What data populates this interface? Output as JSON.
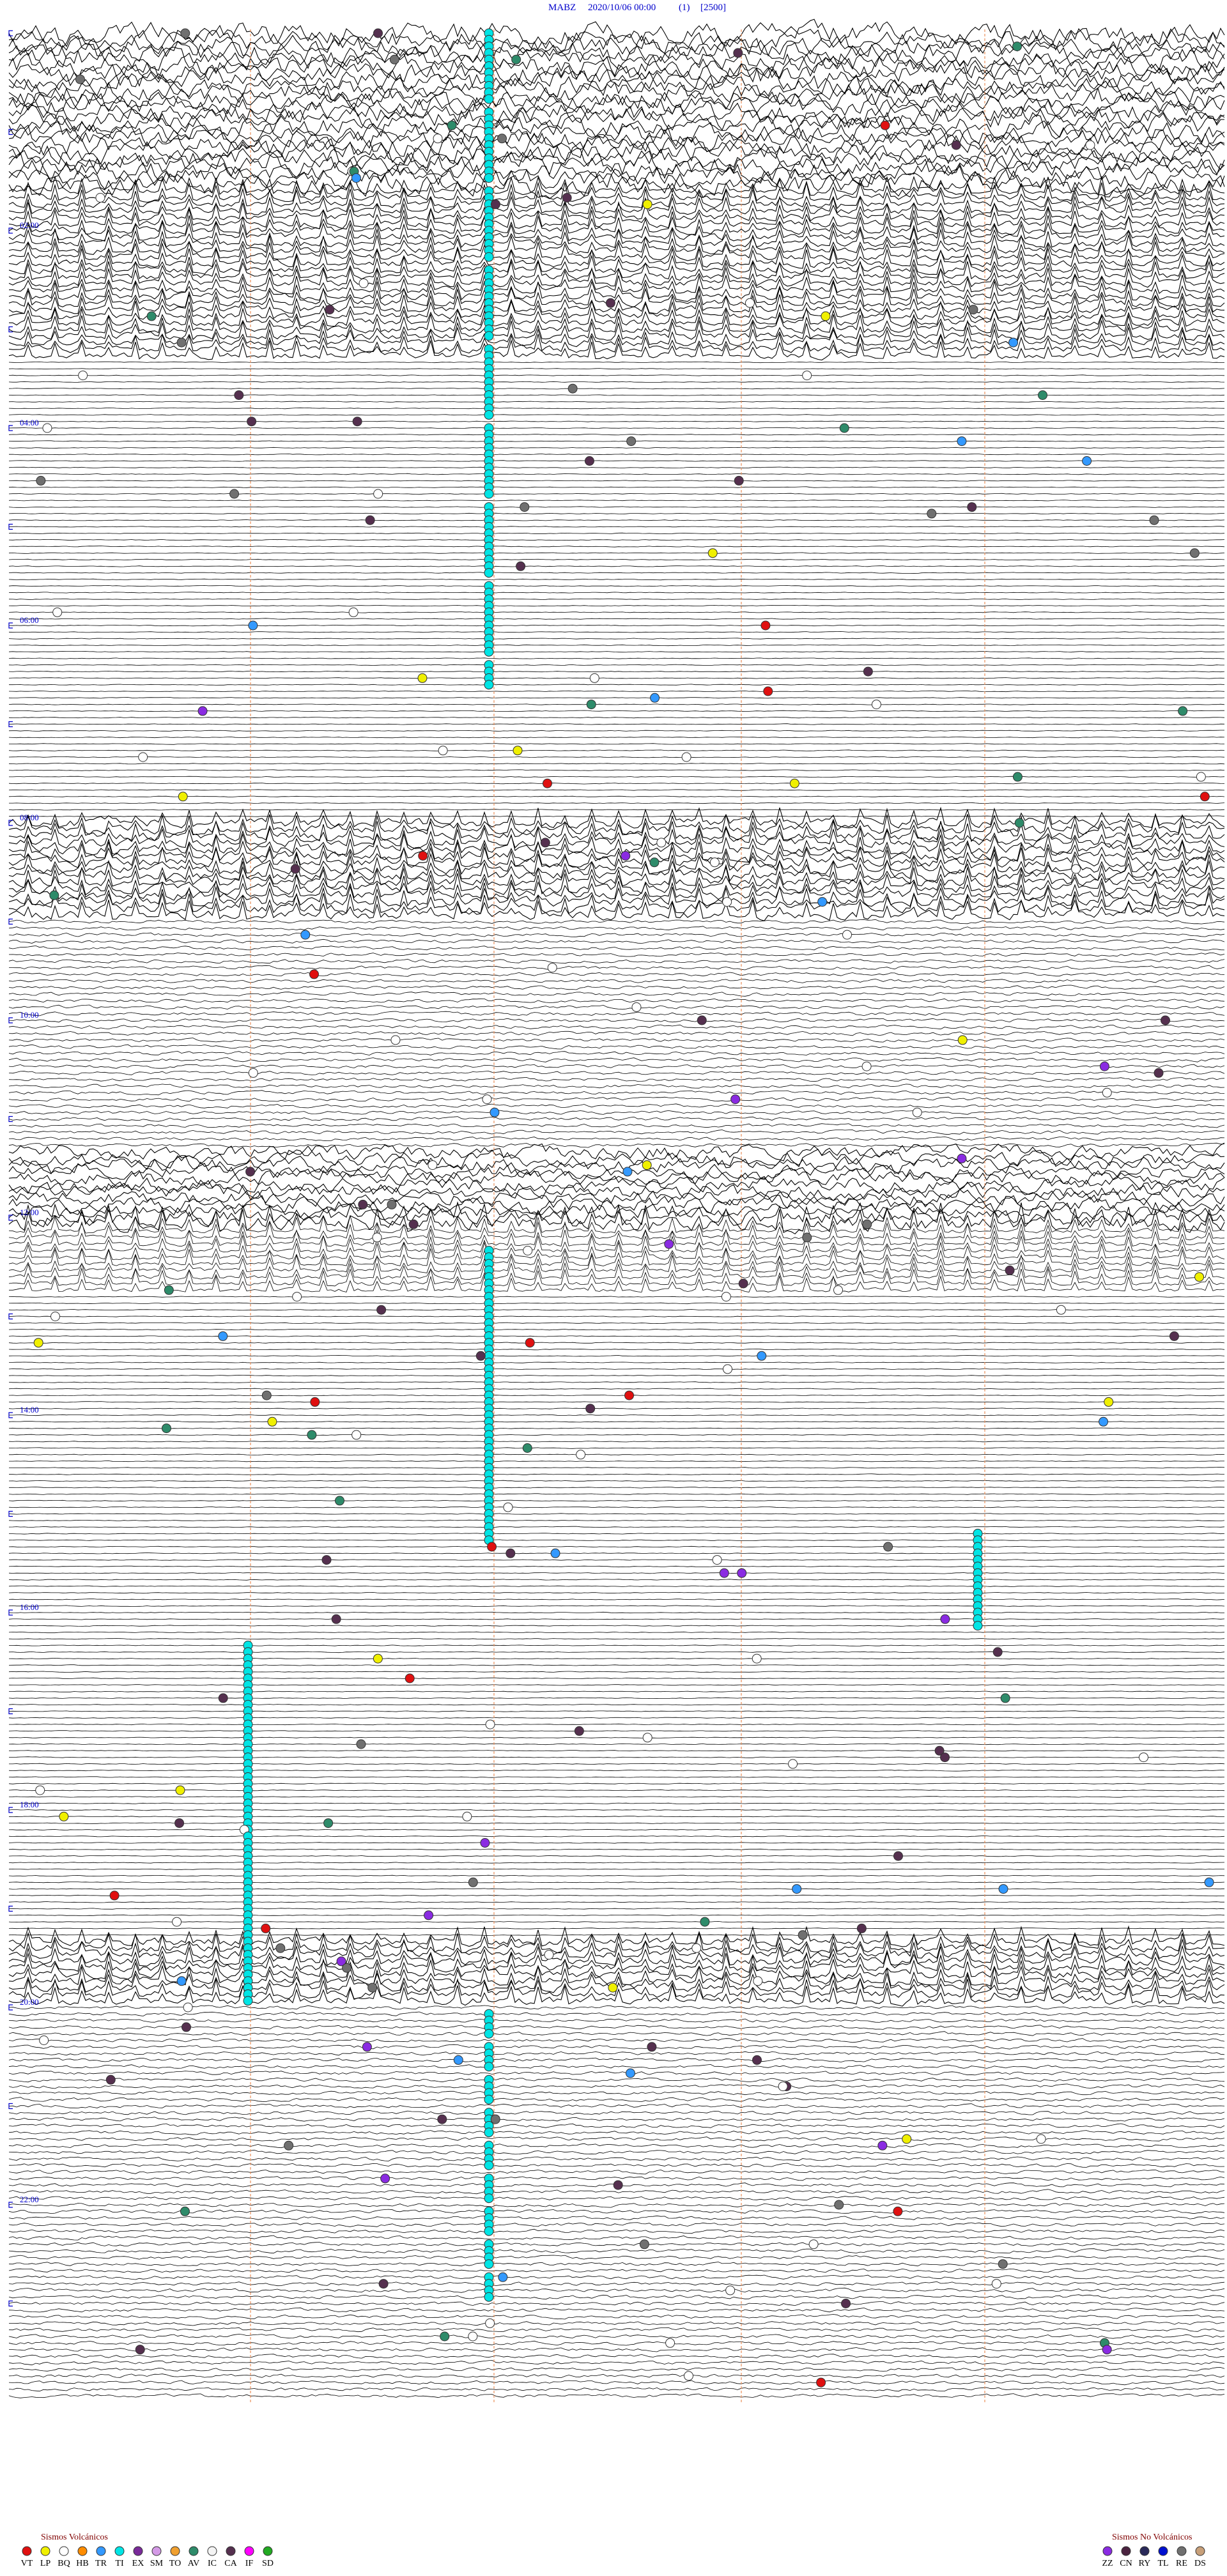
{
  "header": {
    "station": "MABZ",
    "datetime": "2020/10/06 00:00",
    "channel": "(1)",
    "scale": "[2500]"
  },
  "hour_labels": [
    "02:00",
    "04:00",
    "06:00",
    "08:00",
    "10:00",
    "12:00",
    "14:00",
    "16:00",
    "18:00",
    "20:00",
    "22:00"
  ],
  "legend_volcanic": {
    "title": "Sismos Volcánicos",
    "items": [
      {
        "code": "VT",
        "color": "#e01010"
      },
      {
        "code": "LP",
        "color": "#f0f000"
      },
      {
        "code": "BQ",
        "color": "#ffffff"
      },
      {
        "code": "HB",
        "color": "#ff8c00"
      },
      {
        "code": "TR",
        "color": "#3399ff"
      },
      {
        "code": "TI",
        "color": "#00e5e5"
      },
      {
        "code": "EX",
        "color": "#7a2a9a"
      },
      {
        "code": "SM",
        "color": "#d49ae6"
      },
      {
        "code": "TO",
        "color": "#f0a030"
      },
      {
        "code": "AV",
        "color": "#2e8b6a"
      },
      {
        "code": "IC",
        "color": "#f4f4f4"
      },
      {
        "code": "CA",
        "color": "#55304f"
      },
      {
        "code": "IF",
        "color": "#ff00ff"
      },
      {
        "code": "SD",
        "color": "#22aa22"
      }
    ]
  },
  "legend_non_volcanic": {
    "title": "Sismos No Volcánicos",
    "items": [
      {
        "code": "ZZ",
        "color": "#8a2be2"
      },
      {
        "code": "CN",
        "color": "#4b2340"
      },
      {
        "code": "RY",
        "color": "#2a2a5a"
      },
      {
        "code": "TL",
        "color": "#0010d0"
      },
      {
        "code": "RE",
        "color": "#707070"
      },
      {
        "code": "DS",
        "color": "#c8a07a"
      }
    ]
  }
}
